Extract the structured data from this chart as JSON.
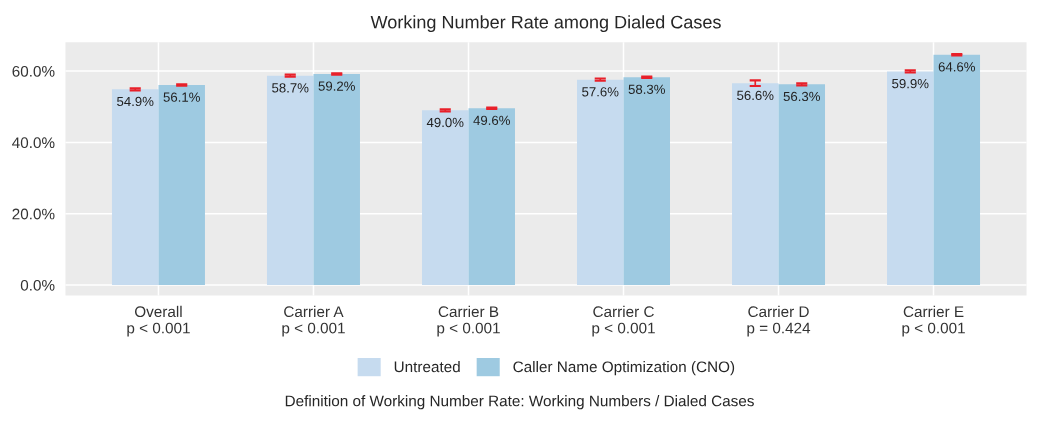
{
  "chart_data": {
    "type": "bar",
    "title": "Working Number Rate among Dialed Cases",
    "categories": [
      "Overall\np < 0.001",
      "Carrier A\np < 0.001",
      "Carrier B\np < 0.001",
      "Carrier C\np < 0.001",
      "Carrier D\np = 0.424",
      "Carrier E\np < 0.001"
    ],
    "series": [
      {
        "name": "Untreated",
        "color": "#c6dbef",
        "values": [
          54.9,
          58.7,
          49.0,
          57.6,
          56.6,
          59.9
        ],
        "value_labels": [
          "54.9%",
          "58.7%",
          "49.0%",
          "57.6%",
          "56.6%",
          "59.9%"
        ],
        "errors": [
          0.3,
          0.3,
          0.3,
          0.3,
          0.8,
          0.3
        ]
      },
      {
        "name": "Caller Name Optimization (CNO)",
        "color": "#9ecae1",
        "values": [
          56.1,
          59.2,
          49.6,
          58.3,
          56.3,
          64.6
        ],
        "value_labels": [
          "56.1%",
          "59.2%",
          "49.6%",
          "58.3%",
          "56.3%",
          "64.6%"
        ],
        "errors": [
          0.2,
          0.2,
          0.2,
          0.2,
          0.3,
          0.2
        ]
      }
    ],
    "ylim": [
      -2.9,
      68.1
    ],
    "yticks": [
      {
        "value": 0,
        "label": "0.0%"
      },
      {
        "value": 20,
        "label": "20.0%"
      },
      {
        "value": 40,
        "label": "40.0%"
      },
      {
        "value": 60,
        "label": "60.0%"
      }
    ],
    "grid": true,
    "legend": "bottom",
    "annotations": [
      "Definition of Working Number Rate: Working Numbers / Dialed Cases"
    ]
  }
}
